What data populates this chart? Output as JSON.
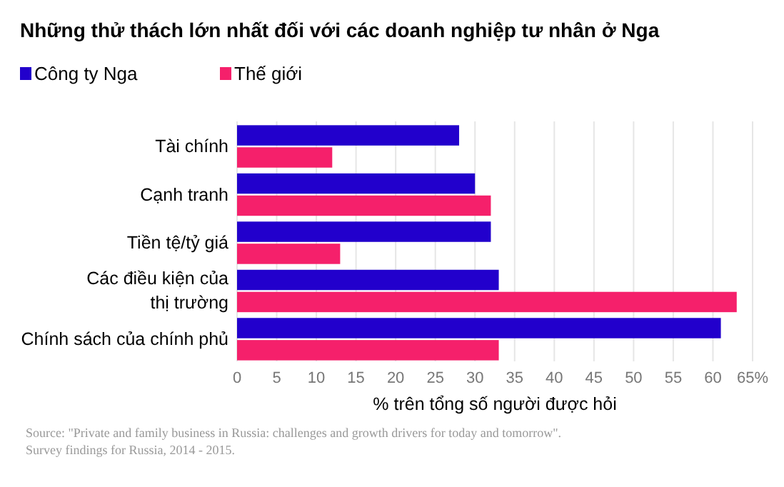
{
  "chart_data": {
    "type": "bar",
    "orientation": "horizontal",
    "title": "Những thử thách lớn nhất đối với các doanh nghiệp tư nhân ở Nga",
    "categories": [
      "Tài chính",
      "Cạnh tranh",
      "Tiền tệ/tỷ giá",
      "Các điều kiện của\nthị trường",
      "Chính sách của chính phủ"
    ],
    "series": [
      {
        "name": "Công ty Nga",
        "color": "#2200cc",
        "values": [
          28,
          30,
          32,
          33,
          61
        ]
      },
      {
        "name": "Thế giới",
        "color": "#f5206b",
        "values": [
          12,
          32,
          13,
          63,
          33
        ]
      }
    ],
    "xlim": [
      0,
      65
    ],
    "xticks": [
      0,
      5,
      10,
      15,
      20,
      25,
      30,
      35,
      40,
      45,
      50,
      55,
      60,
      {
        "value": 65,
        "label": "65%"
      }
    ],
    "xlabel": "% trên tổng số người được hỏi",
    "grid": "x",
    "legend": "top left",
    "annotations": [
      "Source: \"Private and family business in Russia: challenges and growth drivers for today and tomorrow\".\nSurvey findings for Russia, 2014 - 2015."
    ]
  }
}
